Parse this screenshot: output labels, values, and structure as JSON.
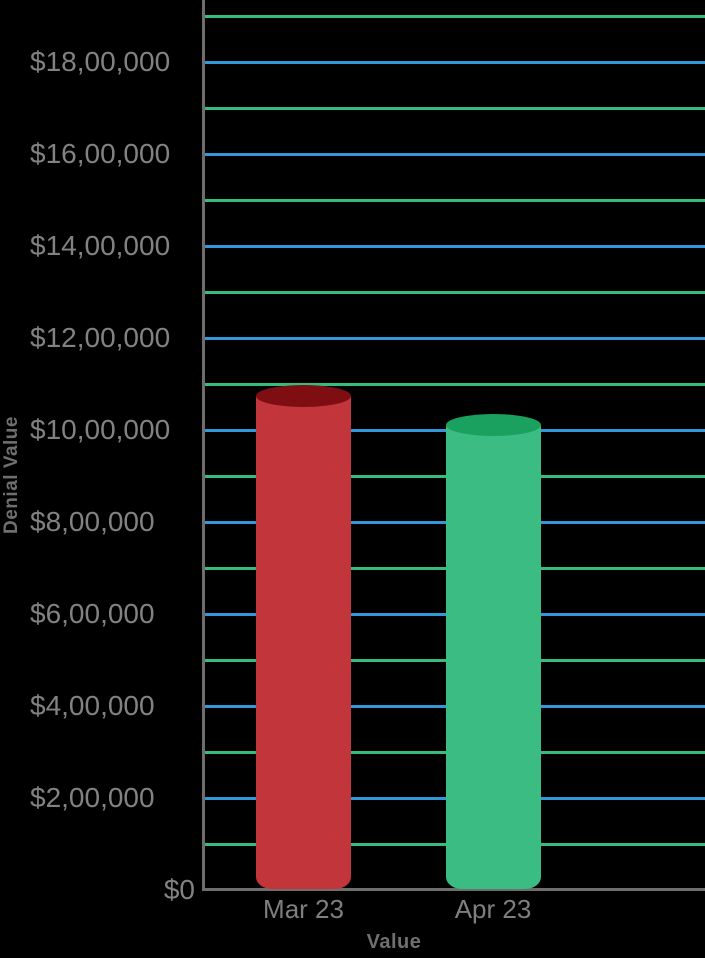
{
  "chart_data": {
    "type": "bar",
    "subtype": "3d-cylinder-column",
    "title": "",
    "xlabel": "Value",
    "ylabel": "Denial Value",
    "categories": [
      "Mar 23",
      "Apr 23"
    ],
    "series": [
      {
        "name": "Denial Value",
        "values": [
          1075000,
          1010000
        ]
      }
    ],
    "value_unit": "USD",
    "number_format": "indian-lakh",
    "y_axis": {
      "min": 0,
      "visible_max": 1950000,
      "minor_gridline_step": 100000,
      "label_step": 200000,
      "tick_labels": [
        "$0",
        "$2,00,000",
        "$4,00,000",
        "$6,00,000",
        "$8,00,000",
        "$10,00,000",
        "$12,00,000",
        "$14,00,000",
        "$16,00,000",
        "$18,00,000"
      ]
    },
    "legend_position": "none",
    "grid": true,
    "colors": {
      "background": "#000000",
      "axis_line": "#6e6e6e",
      "tick_label": "#828282",
      "category_label": "#7f7f7f",
      "axis_title": "#6f6f6f",
      "gridline_odd_lakh": "#35bd7d",
      "gridline_even_lakh": "#3498d8",
      "bars": [
        {
          "body": "#c2353b",
          "top": "#7f0e13"
        },
        {
          "body": "#3abc82",
          "top": "#1aa05f"
        }
      ]
    }
  }
}
